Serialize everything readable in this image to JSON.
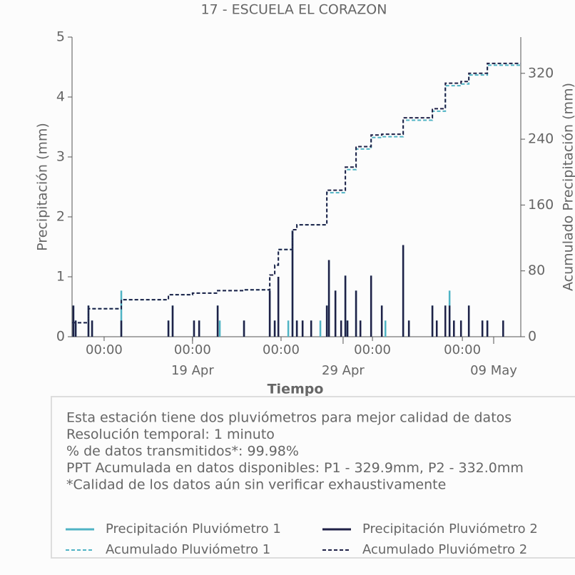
{
  "chart_data": {
    "type": "line",
    "title": "17 - ESCUELA EL CORAZON",
    "xlabel": "Tiempo",
    "ylabel": "Precipitación (mm)",
    "y2label": "Acumulado Precipitación (mm)",
    "xlim": [
      11,
      40.8
    ],
    "ylim": [
      0,
      5
    ],
    "y2lim": [
      0,
      364
    ],
    "yticks": [
      0,
      1,
      2,
      3,
      4,
      5
    ],
    "y2ticks": [
      0,
      80,
      160,
      240,
      320
    ],
    "xticks": [
      {
        "value": 13.13,
        "label": "00:00"
      },
      {
        "value": 19,
        "label": "00:00"
      },
      {
        "value": 24.88,
        "label": "00:00"
      },
      {
        "value": 30.95,
        "label": "00:00"
      },
      {
        "value": 36.92,
        "label": "00:00"
      }
    ],
    "xticks_dates": [
      {
        "value": 19,
        "label": "19 Apr"
      },
      {
        "value": 29,
        "label": "29 Apr"
      },
      {
        "value": 39,
        "label": "09 May"
      }
    ],
    "series": [
      {
        "name": "Precipitación Pluviómetro 1",
        "color": "#4fb3c4",
        "style": "stem",
        "x": [
          11.09,
          11.24,
          12.09,
          12.33,
          14.27,
          17.4,
          17.68,
          19.1,
          19.44,
          20.67,
          20.81,
          22.42,
          24.13,
          24.46,
          24.7,
          25.36,
          25.64,
          25.93,
          26.31,
          26.88,
          27.49,
          27.92,
          28.06,
          28.49,
          28.87,
          29.15,
          29.29,
          29.86,
          30.15,
          30.86,
          31.57,
          31.81,
          32.99,
          33.37,
          34.93,
          35.22,
          35.79,
          36.07,
          36.36,
          36.83,
          37.35,
          38.25,
          38.58,
          39.63
        ],
        "values": [
          0.52,
          0.27,
          0.52,
          0.27,
          0.77,
          0.27,
          0.52,
          0.27,
          0.27,
          0.52,
          0.27,
          0.27,
          0.77,
          0.27,
          1.0,
          0.27,
          1.77,
          0.27,
          0.27,
          0.27,
          0.27,
          0.52,
          1.28,
          0.77,
          0.27,
          1.02,
          0.27,
          0.77,
          0.27,
          1.02,
          0.52,
          0.27,
          1.53,
          0.27,
          0.52,
          0.27,
          0.52,
          0.77,
          0.27,
          0.27,
          0.52,
          0.27,
          0.27,
          0.27
        ]
      },
      {
        "name": "Precipitación Pluviómetro 2",
        "color": "#1f2147",
        "style": "stem",
        "x": [
          11.09,
          11.24,
          12.09,
          12.33,
          14.27,
          17.4,
          17.68,
          19.1,
          19.44,
          20.67,
          22.42,
          24.13,
          24.46,
          24.7,
          25.64,
          25.93,
          26.31,
          26.88,
          27.92,
          28.06,
          28.49,
          28.87,
          29.15,
          29.29,
          29.86,
          30.15,
          30.86,
          31.57,
          32.99,
          33.37,
          34.93,
          35.22,
          35.79,
          36.07,
          36.36,
          36.83,
          37.35,
          38.25,
          38.58,
          39.63
        ],
        "values": [
          0.52,
          0.27,
          0.52,
          0.27,
          0.27,
          0.27,
          0.52,
          0.27,
          0.27,
          0.52,
          0.27,
          0.77,
          0.27,
          1.0,
          1.77,
          0.27,
          0.27,
          0.27,
          0.52,
          1.28,
          0.77,
          0.27,
          1.02,
          0.27,
          0.77,
          0.27,
          1.02,
          0.52,
          1.53,
          0.27,
          0.52,
          0.27,
          0.52,
          0.52,
          0.27,
          0.27,
          0.52,
          0.27,
          0.27,
          0.27
        ]
      },
      {
        "name": "Acumulado Pluviómetro 1",
        "color": "#4fb3c4",
        "style": "dashed",
        "axis": "y2",
        "x": [
          11,
          12.09,
          14.27,
          17.4,
          19,
          20.67,
          22.42,
          24.13,
          24.46,
          24.7,
          25.64,
          25.93,
          27.92,
          29.15,
          29.86,
          30.86,
          31.57,
          32.99,
          34.93,
          35.79,
          36.83,
          37.35,
          38.58,
          40.8
        ],
        "values": [
          17,
          34,
          45,
          51,
          53,
          56,
          57,
          75,
          87,
          106,
          130,
          136,
          175,
          203,
          228,
          242,
          243,
          263,
          274,
          305,
          307,
          318,
          329.9,
          329.9
        ]
      },
      {
        "name": "Acumulado Pluviómetro 2",
        "color": "#1f2147",
        "style": "dashed",
        "axis": "y2",
        "x": [
          11,
          12.09,
          14.27,
          17.4,
          19,
          20.67,
          22.42,
          24.13,
          24.46,
          24.7,
          25.64,
          25.93,
          27.92,
          29.15,
          29.86,
          30.86,
          31.57,
          32.99,
          34.93,
          35.79,
          36.83,
          37.35,
          38.58,
          40.8
        ],
        "values": [
          17,
          34,
          45,
          51,
          53,
          56,
          57,
          75,
          87,
          106,
          130,
          136,
          178,
          206,
          231,
          245,
          246,
          266,
          277,
          308,
          310,
          320,
          332.0,
          332.0
        ]
      }
    ],
    "notes": [
      "Esta estación tiene dos pluviómetros para mejor calidad de datos",
      "Resolución temporal: 1 minuto",
      "% de datos transmitidos*: 99.98%",
      "PPT Acumulada en datos disponibles: P1 - 329.9mm, P2 - 332.0mm",
      "*Calidad de los datos aún sin verificar exhaustivamente"
    ]
  }
}
